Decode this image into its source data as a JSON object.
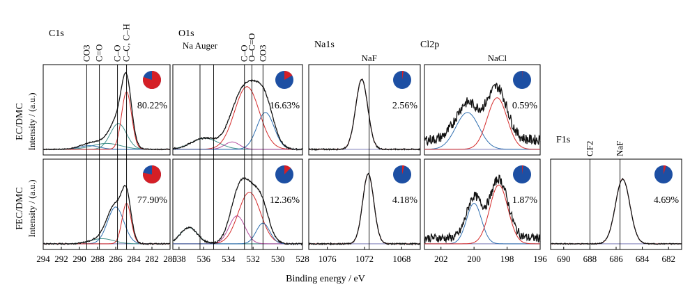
{
  "figure": {
    "xlabel": "Binding energy / eV",
    "row_labels": [
      {
        "solvent": "EC/DMC",
        "unit": "Intensity / (a.u.)"
      },
      {
        "solvent": "FEC/DMC",
        "unit": "Intensity / (a.u.)"
      }
    ]
  },
  "colors": {
    "envelope": "#111111",
    "red_fit": "#d42a2a",
    "blue_fit": "#2f6fb0",
    "teal_fit": "#3f8f8a",
    "magenta_fit": "#b24a9c",
    "background": "#7a7ab8",
    "pie_blue": "#1d4fa3",
    "pie_red": "#d51f26"
  },
  "chart_data": [
    {
      "type": "line",
      "region": "C1s",
      "title": "C1s",
      "x_reversed": true,
      "xlim": [
        294,
        280
      ],
      "ticks": [
        "294",
        "292",
        "290",
        "288",
        "286",
        "284",
        "282",
        "280"
      ],
      "reference_lines": [
        {
          "label": "CO3",
          "x": 289.2
        },
        {
          "label": "C=O",
          "x": 287.8
        },
        {
          "label": "C–O",
          "x": 285.8
        },
        {
          "label": "C–C, C–H",
          "x": 284.8
        }
      ],
      "rows": [
        {
          "solvent": "EC/DMC",
          "pie_fraction": 0.8022,
          "percent_label": "80.22%",
          "series": [
            {
              "role": "background",
              "peaks": [],
              "bg": 0.02
            },
            {
              "role": "teal_fit",
              "peaks": [
                [
                  287.0,
                  1.6,
                  0.08
                ]
              ],
              "bg": 0.02
            },
            {
              "role": "blue_fit",
              "peaks": [
                [
                  288.9,
                  1.1,
                  0.05
                ]
              ],
              "bg": 0.02
            },
            {
              "role": "teal_fit",
              "peaks": [
                [
                  285.7,
                  0.9,
                  0.35
                ]
              ],
              "bg": 0.02
            },
            {
              "role": "red_fit",
              "peaks": [
                [
                  284.8,
                  0.55,
                  0.78
                ]
              ],
              "bg": 0.02
            },
            {
              "role": "envelope",
              "peaks": [
                [
                  284.8,
                  0.55,
                  0.78
                ],
                [
                  285.7,
                  0.9,
                  0.35
                ],
                [
                  287.0,
                  1.6,
                  0.08
                ],
                [
                  288.9,
                  1.1,
                  0.05
                ]
              ],
              "bg": 0.02,
              "noise": 0.006
            }
          ]
        },
        {
          "solvent": "FEC/DMC",
          "pie_fraction": 0.779,
          "percent_label": "77.90%",
          "series": [
            {
              "role": "background",
              "peaks": [],
              "bg": 0.02
            },
            {
              "role": "teal_fit",
              "peaks": [
                [
                  287.5,
                  1.3,
                  0.07
                ]
              ],
              "bg": 0.02
            },
            {
              "role": "blue_fit",
              "peaks": [
                [
                  286.0,
                  0.9,
                  0.5
                ]
              ],
              "bg": 0.02
            },
            {
              "role": "red_fit",
              "peaks": [
                [
                  284.8,
                  0.5,
                  0.55
                ]
              ],
              "bg": 0.02
            },
            {
              "role": "envelope",
              "peaks": [
                [
                  284.8,
                  0.5,
                  0.55
                ],
                [
                  286.0,
                  0.9,
                  0.5
                ],
                [
                  287.5,
                  1.3,
                  0.07
                ]
              ],
              "bg": 0.02,
              "noise": 0.008
            }
          ]
        }
      ]
    },
    {
      "type": "line",
      "region": "O1s",
      "title": "O1s",
      "x_reversed": true,
      "xlim": [
        538.5,
        528
      ],
      "ticks": [
        "538",
        "536",
        "534",
        "532",
        "530",
        "528"
      ],
      "reference_lines": [
        {
          "label": "Na Auger",
          "x": 536.3,
          "inline": true
        },
        {
          "label": "",
          "x": 535.2
        },
        {
          "label": "C–O",
          "x": 532.7
        },
        {
          "label": "O–C=O",
          "x": 532.1
        },
        {
          "label": "CO3",
          "x": 531.2
        }
      ],
      "rows": [
        {
          "solvent": "EC/DMC",
          "pie_fraction": 0.1663,
          "percent_label": "16.63%",
          "series": [
            {
              "role": "background",
              "peaks": [],
              "bg": 0.02
            },
            {
              "role": "teal_fit",
              "peaks": [
                [
                  535.9,
                  1.1,
                  0.15
                ]
              ],
              "bg": 0.02
            },
            {
              "role": "magenta_fit",
              "peaks": [
                [
                  533.7,
                  0.6,
                  0.1
                ]
              ],
              "bg": 0.02
            },
            {
              "role": "red_fit",
              "peaks": [
                [
                  532.5,
                  1.0,
                  0.85
                ]
              ],
              "bg": 0.02
            },
            {
              "role": "blue_fit",
              "peaks": [
                [
                  531.0,
                  0.7,
                  0.5
                ]
              ],
              "bg": 0.02
            },
            {
              "role": "envelope",
              "peaks": [
                [
                  535.9,
                  1.1,
                  0.15
                ],
                [
                  533.7,
                  0.6,
                  0.1
                ],
                [
                  532.5,
                  1.0,
                  0.85
                ],
                [
                  531.0,
                  0.7,
                  0.5
                ]
              ],
              "bg": 0.02,
              "noise": 0.01
            }
          ]
        },
        {
          "solvent": "FEC/DMC",
          "pie_fraction": 0.1236,
          "percent_label": "12.36%",
          "series": [
            {
              "role": "background",
              "peaks": [],
              "bg": 0.02
            },
            {
              "role": "teal_fit",
              "peaks": [
                [
                  537.2,
                  0.7,
                  0.22
                ]
              ],
              "bg": 0.02
            },
            {
              "role": "magenta_fit",
              "peaks": [
                [
                  533.3,
                  0.65,
                  0.38
                ]
              ],
              "bg": 0.02
            },
            {
              "role": "red_fit",
              "peaks": [
                [
                  532.3,
                  0.9,
                  0.7
                ]
              ],
              "bg": 0.02
            },
            {
              "role": "blue_fit",
              "peaks": [
                [
                  531.2,
                  0.55,
                  0.28
                ]
              ],
              "bg": 0.02
            },
            {
              "role": "envelope",
              "peaks": [
                [
                  537.2,
                  0.7,
                  0.22
                ],
                [
                  533.3,
                  0.65,
                  0.38
                ],
                [
                  532.3,
                  0.9,
                  0.7
                ],
                [
                  531.2,
                  0.55,
                  0.28
                ]
              ],
              "bg": 0.02,
              "noise": 0.01
            }
          ]
        }
      ]
    },
    {
      "type": "line",
      "region": "Na1s",
      "title": "Na1s",
      "x_reversed": true,
      "xlim": [
        1078,
        1066
      ],
      "ticks": [
        "1076",
        "1072",
        "1068"
      ],
      "reference_lines": [
        {
          "label": "NaF",
          "x": 1071.5
        }
      ],
      "rows": [
        {
          "solvent": "EC/DMC",
          "pie_fraction": 0.0256,
          "percent_label": "2.56%",
          "series": [
            {
              "role": "background",
              "peaks": [],
              "bg": 0.02
            },
            {
              "role": "red_fit",
              "peaks": [
                [
                  1072.3,
                  0.65,
                  0.95
                ]
              ],
              "bg": 0.02
            },
            {
              "role": "envelope",
              "peaks": [
                [
                  1072.3,
                  0.65,
                  0.95
                ]
              ],
              "bg": 0.02,
              "noise": 0.008
            }
          ]
        },
        {
          "solvent": "FEC/DMC",
          "pie_fraction": 0.0418,
          "percent_label": "4.18%",
          "series": [
            {
              "role": "background",
              "peaks": [],
              "bg": 0.02
            },
            {
              "role": "red_fit",
              "peaks": [
                [
                  1071.6,
                  0.6,
                  0.95
                ]
              ],
              "bg": 0.02
            },
            {
              "role": "envelope",
              "peaks": [
                [
                  1071.6,
                  0.6,
                  0.95
                ]
              ],
              "bg": 0.02,
              "noise": 0.008
            }
          ]
        }
      ]
    },
    {
      "type": "line",
      "region": "Cl2p",
      "title": "Cl2p",
      "x_reversed": true,
      "xlim": [
        203,
        196
      ],
      "ticks": [
        "202",
        "200",
        "198",
        "196"
      ],
      "reference_lines": [
        {
          "label": "NaCl",
          "x": 198.6,
          "label_only": true
        }
      ],
      "rows": [
        {
          "solvent": "EC/DMC",
          "pie_fraction": 0.0059,
          "percent_label": "0.59%",
          "series": [
            {
              "role": "background",
              "peaks": [],
              "bg": 0.02
            },
            {
              "role": "blue_fit",
              "peaks": [
                [
                  200.4,
                  0.7,
                  0.5
                ]
              ],
              "bg": 0.02
            },
            {
              "role": "red_fit",
              "peaks": [
                [
                  198.6,
                  0.6,
                  0.7
                ]
              ],
              "bg": 0.02
            },
            {
              "role": "envelope",
              "peaks": [
                [
                  200.4,
                  0.7,
                  0.5
                ],
                [
                  198.6,
                  0.6,
                  0.7
                ]
              ],
              "bg": 0.15,
              "noise": 0.07
            }
          ]
        },
        {
          "solvent": "FEC/DMC",
          "pie_fraction": 0.0187,
          "percent_label": "1.87%",
          "series": [
            {
              "role": "background",
              "peaks": [],
              "bg": 0.02
            },
            {
              "role": "blue_fit",
              "peaks": [
                [
                  200.0,
                  0.45,
                  0.55
                ]
              ],
              "bg": 0.02
            },
            {
              "role": "red_fit",
              "peaks": [
                [
                  198.5,
                  0.55,
                  0.8
                ]
              ],
              "bg": 0.02
            },
            {
              "role": "envelope",
              "peaks": [
                [
                  200.0,
                  0.45,
                  0.55
                ],
                [
                  198.5,
                  0.55,
                  0.8
                ]
              ],
              "bg": 0.1,
              "noise": 0.06
            }
          ]
        }
      ]
    },
    {
      "type": "line",
      "region": "F1s",
      "title": "F1s",
      "x_reversed": true,
      "xlim": [
        691,
        681
      ],
      "ticks": [
        "690",
        "688",
        "686",
        "684",
        "682"
      ],
      "reference_lines": [
        {
          "label": "CF2",
          "x": 688.0
        },
        {
          "label": "NaF",
          "x": 685.7
        }
      ],
      "rows": [
        {
          "solvent": "FEC/DMC",
          "pie_fraction": 0.0469,
          "percent_label": "4.69%",
          "series": [
            {
              "role": "background",
              "peaks": [],
              "bg": 0.02
            },
            {
              "role": "red_fit",
              "peaks": [
                [
                  685.5,
                  0.55,
                  0.88
                ]
              ],
              "bg": 0.02
            },
            {
              "role": "envelope",
              "peaks": [
                [
                  685.5,
                  0.55,
                  0.88
                ]
              ],
              "bg": 0.02,
              "noise": 0.006
            }
          ]
        }
      ]
    }
  ]
}
